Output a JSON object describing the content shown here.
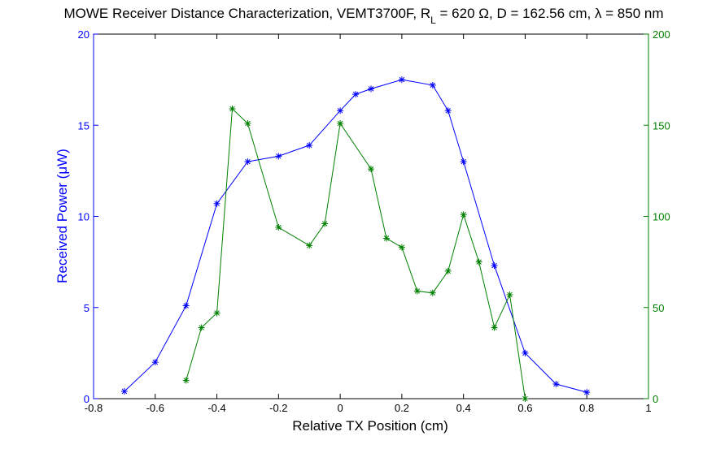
{
  "chart_data": {
    "type": "line",
    "title": {
      "prefix": "MOWE Receiver Distance Characterization, VEMT3700F, R",
      "subscript": "L",
      "middle": " = 620 ",
      "ohm": "Ω",
      "after_ohm": ", D = 162.56 cm, ",
      "lambda": "λ",
      "suffix": " = 850 nm"
    },
    "xlabel": "Relative TX Position (cm)",
    "ylabel": {
      "prefix": "Received Power (",
      "mu": "μ",
      "suffix": "W)"
    },
    "xlim": [
      -0.8,
      1
    ],
    "x_ticks": [
      -0.8,
      -0.6,
      -0.4,
      -0.2,
      0,
      0.2,
      0.4,
      0.6,
      0.8,
      1
    ],
    "x_tick_labels": [
      "-0.8",
      "-0.6",
      "-0.4",
      "-0.2",
      "0",
      "0.2",
      "0.4",
      "0.6",
      "0.8",
      "1"
    ],
    "y_left": {
      "lim": [
        0,
        20
      ],
      "ticks": [
        0,
        5,
        10,
        15,
        20
      ],
      "tick_labels": [
        "0",
        "5",
        "10",
        "15",
        "20"
      ],
      "color": "#0000ff"
    },
    "y_right": {
      "lim": [
        0,
        200
      ],
      "ticks": [
        0,
        50,
        100,
        150,
        200
      ],
      "tick_labels": [
        "0",
        "50",
        "100",
        "150",
        "200"
      ],
      "color": "#008000"
    },
    "grid": false,
    "series": [
      {
        "axis": "left",
        "color": "#0000ff",
        "marker": "*",
        "x": [
          -0.7,
          -0.6,
          -0.5,
          -0.4,
          -0.3,
          -0.2,
          -0.1,
          0,
          0.05,
          0.1,
          0.2,
          0.3,
          0.35,
          0.4,
          0.5,
          0.6,
          0.7,
          0.8
        ],
        "y": [
          0.4,
          2.0,
          5.1,
          10.7,
          13.0,
          13.3,
          13.9,
          15.8,
          16.7,
          17.0,
          17.5,
          17.2,
          15.8,
          13.0,
          7.3,
          2.5,
          0.8,
          0.35
        ]
      },
      {
        "axis": "right",
        "color": "#008000",
        "marker": "*",
        "x": [
          -0.5,
          -0.45,
          -0.4,
          -0.35,
          -0.3,
          -0.2,
          -0.1,
          -0.05,
          0,
          0.1,
          0.15,
          0.2,
          0.25,
          0.3,
          0.35,
          0.4,
          0.45,
          0.5,
          0.55,
          0.6
        ],
        "y": [
          10,
          39,
          47,
          159,
          151,
          94,
          84,
          96,
          151,
          126,
          88,
          83,
          59,
          58,
          70,
          101,
          75,
          39,
          57,
          0
        ]
      }
    ]
  }
}
